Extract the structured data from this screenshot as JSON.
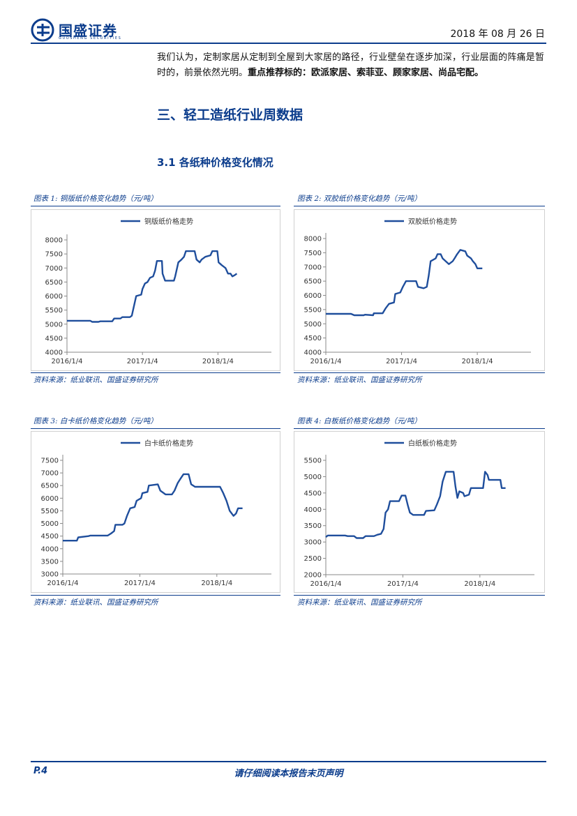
{
  "header": {
    "logo_text": "国盛证券",
    "logo_sub": "GUOSHENG SECURITIES",
    "date": "2018 年 08 月 26 日"
  },
  "body": {
    "para_plain": "我们认为，定制家居从定制到全屋到大家居的路径，行业壁垒在逐步加深，行业层面的阵痛是暂时的，前景依然光明。",
    "para_bold": "重点推荐标的：欧派家居、索菲亚、顾家家居、尚品宅配。",
    "section_title": "三、轻工造纸行业周数据",
    "subsection_title": "3.1 各纸种价格变化情况"
  },
  "figures": [
    {
      "caption": "图表 1:  铜版纸价格变化趋势（元/吨）",
      "source": "资料来源：纸业联讯、国盛证券研究所"
    },
    {
      "caption": "图表 2:  双胶纸价格变化趋势（元/吨）",
      "source": "资料来源：纸业联讯、国盛证券研究所"
    },
    {
      "caption": "图表 3:  白卡纸价格变化趋势（元/吨）",
      "source": "资料来源：纸业联讯、国盛证券研究所"
    },
    {
      "caption": "图表 4:  白板纸价格变化趋势（元/吨）",
      "source": "资料来源：纸业联讯、国盛证券研究所"
    }
  ],
  "chart_data": [
    {
      "type": "line",
      "series": [
        {
          "name": "铜版纸价格走势"
        }
      ],
      "ylim": [
        4000,
        8000
      ],
      "yticks": [
        "4000",
        "4500",
        "5000",
        "5500",
        "6000",
        "6500",
        "7000",
        "7500",
        "8000"
      ],
      "xticks": [
        "2016/1/4",
        "2017/1/4",
        "2018/1/4"
      ],
      "xlim": [
        0,
        32.5
      ],
      "legend": "top",
      "color": "#1f4e9c",
      "points": [
        [
          0,
          5120
        ],
        [
          3.7,
          5120
        ],
        [
          4,
          5080
        ],
        [
          5,
          5080
        ],
        [
          5.3,
          5100
        ],
        [
          7.2,
          5100
        ],
        [
          7.5,
          5200
        ],
        [
          8.5,
          5200
        ],
        [
          8.8,
          5250
        ],
        [
          10,
          5250
        ],
        [
          10.3,
          5300
        ],
        [
          10.6,
          5600
        ],
        [
          11,
          6000
        ],
        [
          11.8,
          6050
        ],
        [
          12,
          6250
        ],
        [
          12.4,
          6450
        ],
        [
          12.8,
          6500
        ],
        [
          13.2,
          6650
        ],
        [
          13.7,
          6700
        ],
        [
          14,
          6900
        ],
        [
          14.3,
          7250
        ],
        [
          15.1,
          7250
        ],
        [
          15.2,
          6800
        ],
        [
          15.6,
          6550
        ],
        [
          17,
          6550
        ],
        [
          17.2,
          6700
        ],
        [
          17.7,
          7200
        ],
        [
          18.2,
          7300
        ],
        [
          18.6,
          7400
        ],
        [
          18.9,
          7600
        ],
        [
          20.3,
          7600
        ],
        [
          20.6,
          7300
        ],
        [
          21.1,
          7200
        ],
        [
          21.4,
          7300
        ],
        [
          22,
          7400
        ],
        [
          22.8,
          7450
        ],
        [
          23.1,
          7600
        ],
        [
          23.9,
          7600
        ],
        [
          24.1,
          7200
        ],
        [
          24.6,
          7100
        ],
        [
          25.2,
          7000
        ],
        [
          25.6,
          6800
        ],
        [
          26,
          6800
        ],
        [
          26.3,
          6700
        ],
        [
          26.7,
          6750
        ],
        [
          27,
          6800
        ]
      ]
    },
    {
      "type": "line",
      "series": [
        {
          "name": "双胶纸价格走势"
        }
      ],
      "ylim": [
        4000,
        8000
      ],
      "yticks": [
        "4000",
        "4500",
        "5000",
        "5500",
        "6000",
        "6500",
        "7000",
        "7500",
        "8000"
      ],
      "xticks": [
        "2016/1/4",
        "2017/1/4",
        "2018/1/4"
      ],
      "xlim": [
        0,
        32.5
      ],
      "legend": "top",
      "color": "#1f4e9c",
      "points": [
        [
          0,
          5350
        ],
        [
          4,
          5350
        ],
        [
          4.5,
          5300
        ],
        [
          6,
          5300
        ],
        [
          6.2,
          5320
        ],
        [
          7.5,
          5300
        ],
        [
          7.6,
          5370
        ],
        [
          9,
          5370
        ],
        [
          9.5,
          5550
        ],
        [
          10,
          5700
        ],
        [
          10.8,
          5750
        ],
        [
          11,
          6050
        ],
        [
          11.8,
          6100
        ],
        [
          12.2,
          6300
        ],
        [
          12.7,
          6500
        ],
        [
          14.3,
          6500
        ],
        [
          14.6,
          6300
        ],
        [
          15.5,
          6250
        ],
        [
          16,
          6300
        ],
        [
          16.3,
          6700
        ],
        [
          16.6,
          7200
        ],
        [
          17.4,
          7300
        ],
        [
          17.7,
          7450
        ],
        [
          18.2,
          7450
        ],
        [
          18.5,
          7300
        ],
        [
          19,
          7200
        ],
        [
          19.5,
          7100
        ],
        [
          20.1,
          7200
        ],
        [
          20.4,
          7300
        ],
        [
          20.8,
          7450
        ],
        [
          21.3,
          7600
        ],
        [
          22.1,
          7550
        ],
        [
          22.4,
          7400
        ],
        [
          23,
          7300
        ],
        [
          23.3,
          7200
        ],
        [
          23.7,
          7100
        ],
        [
          24,
          6950
        ],
        [
          24.8,
          6950
        ]
      ]
    },
    {
      "type": "line",
      "series": [
        {
          "name": "白卡纸价格走势"
        }
      ],
      "ylim": [
        3000,
        7500
      ],
      "yticks": [
        "3000",
        "3500",
        "4000",
        "4500",
        "5000",
        "5500",
        "6000",
        "6500",
        "7000",
        "7500"
      ],
      "xticks": [
        "2016/1/4",
        "2017/1/4",
        "2018/1/4"
      ],
      "xlim": [
        0,
        32.5
      ],
      "legend": "top",
      "color": "#1f4e9c",
      "points": [
        [
          0,
          4320
        ],
        [
          2.2,
          4320
        ],
        [
          2.4,
          4450
        ],
        [
          4,
          4500
        ],
        [
          4.3,
          4520
        ],
        [
          7,
          4520
        ],
        [
          7.5,
          4600
        ],
        [
          8,
          4700
        ],
        [
          8.2,
          4950
        ],
        [
          9.3,
          4950
        ],
        [
          9.6,
          5000
        ],
        [
          10,
          5300
        ],
        [
          10.5,
          5600
        ],
        [
          11.2,
          5650
        ],
        [
          11.5,
          5900
        ],
        [
          12.2,
          6000
        ],
        [
          12.4,
          6200
        ],
        [
          13.2,
          6250
        ],
        [
          13.4,
          6500
        ],
        [
          14.8,
          6550
        ],
        [
          15.2,
          6300
        ],
        [
          16,
          6150
        ],
        [
          17,
          6150
        ],
        [
          17.4,
          6300
        ],
        [
          17.9,
          6600
        ],
        [
          18.4,
          6800
        ],
        [
          18.8,
          6950
        ],
        [
          19.6,
          6950
        ],
        [
          20,
          6550
        ],
        [
          20.6,
          6450
        ],
        [
          24.5,
          6450
        ],
        [
          25,
          6200
        ],
        [
          25.5,
          5900
        ],
        [
          26,
          5500
        ],
        [
          26.6,
          5300
        ],
        [
          27,
          5400
        ],
        [
          27.3,
          5600
        ],
        [
          28,
          5600
        ]
      ]
    },
    {
      "type": "line",
      "series": [
        {
          "name": "白纸板价格走势"
        }
      ],
      "ylim": [
        2000,
        5500
      ],
      "yticks": [
        "2000",
        "2500",
        "3000",
        "3500",
        "4000",
        "4500",
        "5000",
        "5500"
      ],
      "xticks": [
        "2016/1/4",
        "2017/1/4",
        "2018/1/4"
      ],
      "xlim": [
        0,
        32.5
      ],
      "legend": "top",
      "color": "#1f4e9c",
      "points": [
        [
          0,
          3150
        ],
        [
          0.3,
          3200
        ],
        [
          3,
          3200
        ],
        [
          3.4,
          3180
        ],
        [
          4.4,
          3180
        ],
        [
          4.8,
          3120
        ],
        [
          5.8,
          3120
        ],
        [
          6.2,
          3180
        ],
        [
          7.5,
          3180
        ],
        [
          8,
          3220
        ],
        [
          8.6,
          3250
        ],
        [
          9,
          3400
        ],
        [
          9.3,
          3900
        ],
        [
          9.7,
          4000
        ],
        [
          10,
          4250
        ],
        [
          11.4,
          4250
        ],
        [
          11.8,
          4420
        ],
        [
          12.4,
          4420
        ],
        [
          12.8,
          4100
        ],
        [
          13.1,
          3900
        ],
        [
          13.6,
          3830
        ],
        [
          15.3,
          3830
        ],
        [
          15.6,
          3950
        ],
        [
          16.9,
          3970
        ],
        [
          17.3,
          4150
        ],
        [
          17.8,
          4400
        ],
        [
          18.2,
          4850
        ],
        [
          18.7,
          5150
        ],
        [
          19.9,
          5150
        ],
        [
          20.2,
          4700
        ],
        [
          20.5,
          4350
        ],
        [
          20.8,
          4550
        ],
        [
          21.4,
          4500
        ],
        [
          21.6,
          4400
        ],
        [
          22.3,
          4450
        ],
        [
          22.6,
          4650
        ],
        [
          24.5,
          4650
        ],
        [
          24.8,
          5150
        ],
        [
          25.2,
          5050
        ],
        [
          25.4,
          4900
        ],
        [
          27.2,
          4900
        ],
        [
          27.4,
          4650
        ],
        [
          28,
          4650
        ]
      ]
    }
  ],
  "footer": {
    "page": "P.4",
    "note": "请仔细阅读本报告末页声明"
  }
}
